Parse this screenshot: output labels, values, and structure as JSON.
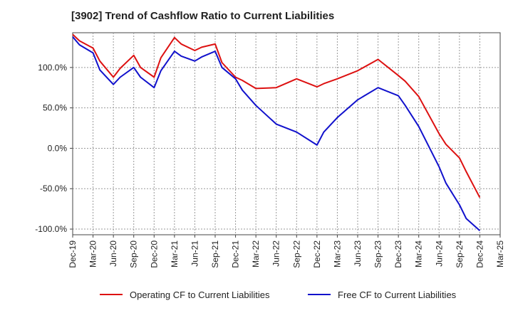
{
  "chart_data": {
    "type": "line",
    "title": "[3902]  Trend of Cashflow Ratio to Current Liabilities",
    "xlabel": "",
    "ylabel": "",
    "ylim": [
      -107,
      143
    ],
    "yticks": [
      100,
      50,
      0,
      -50,
      -100
    ],
    "ytick_labels": [
      "100.0%",
      "50.0%",
      "0.0%",
      "-50.0%",
      "-100.0%"
    ],
    "xtick_labels": [
      "Dec-19",
      "Mar-20",
      "Jun-20",
      "Sep-20",
      "Dec-20",
      "Mar-21",
      "Jun-21",
      "Sep-21",
      "Dec-21",
      "Mar-22",
      "Jun-22",
      "Sep-22",
      "Dec-22",
      "Mar-23",
      "Jun-23",
      "Sep-23",
      "Dec-23",
      "Mar-24",
      "Jun-24",
      "Sep-24",
      "Dec-24",
      "Mar-25"
    ],
    "x": [
      "2019-12",
      "2020-01",
      "2020-03",
      "2020-04",
      "2020-06",
      "2020-07",
      "2020-09",
      "2020-10",
      "2020-12",
      "2021-01",
      "2021-03",
      "2021-04",
      "2021-06",
      "2021-07",
      "2021-09",
      "2021-10",
      "2021-12",
      "2022-01",
      "2022-03",
      "2022-06",
      "2022-09",
      "2022-12",
      "2023-01",
      "2023-03",
      "2023-06",
      "2023-09",
      "2023-12",
      "2024-01",
      "2024-03",
      "2024-06",
      "2024-07",
      "2024-09",
      "2024-10",
      "2024-12"
    ],
    "grid": true,
    "legend_position": "bottom",
    "series": [
      {
        "name": "Operating CF to Current Liabilities",
        "color": "#dd1111",
        "values": [
          141,
          133,
          124,
          108,
          88,
          99,
          115,
          100,
          88,
          112,
          137,
          129,
          121,
          125,
          129,
          106,
          88,
          84,
          74,
          75,
          86,
          76,
          80,
          86,
          96,
          110,
          90,
          83,
          64,
          18,
          5,
          -12,
          -29,
          -61
        ]
      },
      {
        "name": "Free CF to Current Liabilities",
        "color": "#1111cc",
        "values": [
          138,
          128,
          118,
          97,
          79,
          88,
          100,
          88,
          75,
          96,
          120,
          114,
          108,
          113,
          120,
          100,
          86,
          72,
          53,
          30,
          20,
          4,
          20,
          38,
          60,
          75,
          65,
          53,
          27,
          -23,
          -43,
          -70,
          -87,
          -102
        ]
      }
    ]
  }
}
